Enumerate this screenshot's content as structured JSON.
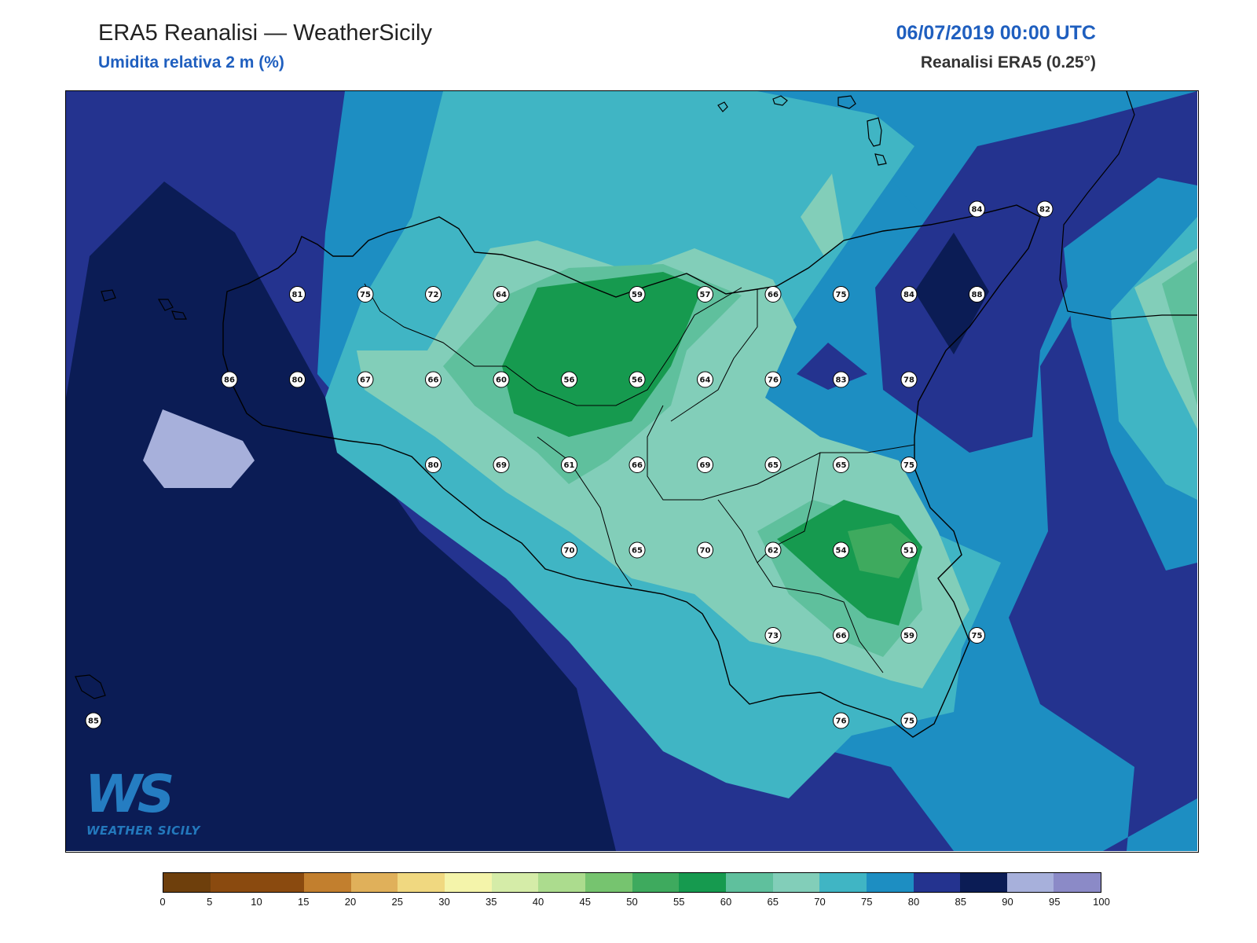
{
  "header": {
    "title": "ERA5 Reanalisi — WeatherSicily",
    "subtitle": "Umidita relativa 2 m (%)",
    "datetime": "06/07/2019 00:00 UTC",
    "source": "Reanalisi ERA5 (0.25°)"
  },
  "logo": {
    "letters": "WS",
    "name": "WEATHER SICILY"
  },
  "colors": {
    "sea_deep": "#0b1c55",
    "band_80_85": "#24338f",
    "band_75_80": "#1d8ec2",
    "band_70_75": "#40b5c4",
    "band_65_70": "#82ceb9",
    "band_60_65": "#5fc09d",
    "band_55_60": "#169a4f",
    "band_50_55": "#3eaa5e",
    "band_95_100": "#a7b0db"
  },
  "colorbar": {
    "ticks": [
      "0",
      "5",
      "10",
      "15",
      "20",
      "25",
      "30",
      "35",
      "40",
      "45",
      "50",
      "55",
      "60",
      "65",
      "70",
      "75",
      "80",
      "85",
      "90",
      "95",
      "100"
    ],
    "colors": [
      "#6e3f0c",
      "#8a4a0f",
      "#8a4a0f",
      "#c27f2e",
      "#e0b05a",
      "#f0d880",
      "#f4f4aa",
      "#d5eca8",
      "#acdc8e",
      "#76c46f",
      "#3eaa5e",
      "#169a4f",
      "#5fc09d",
      "#82ceb9",
      "#40b5c4",
      "#1d8ec2",
      "#24338f",
      "#0b1c55",
      "#a7b0db",
      "#8b8ac7"
    ]
  },
  "stations": [
    {
      "v": "81",
      "x": 13.0,
      "y": 38.6
    },
    {
      "v": "75",
      "x": 13.5,
      "y": 38.6
    },
    {
      "v": "72",
      "x": 14.0,
      "y": 38.6
    },
    {
      "v": "64",
      "x": 14.5,
      "y": 38.6
    },
    {
      "v": "59",
      "x": 15.5,
      "y": 38.6
    },
    {
      "v": "57",
      "x": 16.0,
      "y": 38.6
    },
    {
      "v": "66",
      "x": 16.5,
      "y": 38.6
    },
    {
      "v": "75",
      "x": 17.0,
      "y": 38.6
    },
    {
      "v": "84",
      "x": 17.5,
      "y": 38.6
    },
    {
      "v": "88",
      "x": 18.0,
      "y": 38.6
    },
    {
      "v": "84",
      "x": 18.0,
      "y": 39.1
    },
    {
      "v": "82",
      "x": 18.5,
      "y": 39.1
    },
    {
      "v": "86",
      "x": 12.5,
      "y": 38.1
    },
    {
      "v": "80",
      "x": 13.0,
      "y": 38.1
    },
    {
      "v": "67",
      "x": 13.5,
      "y": 38.1
    },
    {
      "v": "66",
      "x": 14.0,
      "y": 38.1
    },
    {
      "v": "60",
      "x": 14.5,
      "y": 38.1
    },
    {
      "v": "56",
      "x": 15.0,
      "y": 38.1
    },
    {
      "v": "56",
      "x": 15.5,
      "y": 38.1
    },
    {
      "v": "64",
      "x": 16.0,
      "y": 38.1
    },
    {
      "v": "76",
      "x": 16.5,
      "y": 38.1
    },
    {
      "v": "83",
      "x": 17.0,
      "y": 38.1
    },
    {
      "v": "78",
      "x": 17.5,
      "y": 38.1
    },
    {
      "v": "80",
      "x": 14.0,
      "y": 37.6
    },
    {
      "v": "69",
      "x": 14.5,
      "y": 37.6
    },
    {
      "v": "61",
      "x": 15.0,
      "y": 37.6
    },
    {
      "v": "66",
      "x": 15.5,
      "y": 37.6
    },
    {
      "v": "69",
      "x": 16.0,
      "y": 37.6
    },
    {
      "v": "65",
      "x": 16.5,
      "y": 37.6
    },
    {
      "v": "65",
      "x": 17.0,
      "y": 37.6
    },
    {
      "v": "75",
      "x": 17.5,
      "y": 37.6
    },
    {
      "v": "70",
      "x": 15.0,
      "y": 37.1
    },
    {
      "v": "65",
      "x": 15.5,
      "y": 37.1
    },
    {
      "v": "70",
      "x": 16.0,
      "y": 37.1
    },
    {
      "v": "62",
      "x": 16.5,
      "y": 37.1
    },
    {
      "v": "54",
      "x": 17.0,
      "y": 37.1
    },
    {
      "v": "51",
      "x": 17.5,
      "y": 37.1
    },
    {
      "v": "73",
      "x": 16.5,
      "y": 36.6
    },
    {
      "v": "66",
      "x": 17.0,
      "y": 36.6
    },
    {
      "v": "59",
      "x": 17.5,
      "y": 36.6
    },
    {
      "v": "75",
      "x": 18.0,
      "y": 36.6
    },
    {
      "v": "76",
      "x": 17.0,
      "y": 36.1
    },
    {
      "v": "75",
      "x": 17.5,
      "y": 36.1
    },
    {
      "v": "85",
      "x": 11.5,
      "y": 36.1
    }
  ]
}
